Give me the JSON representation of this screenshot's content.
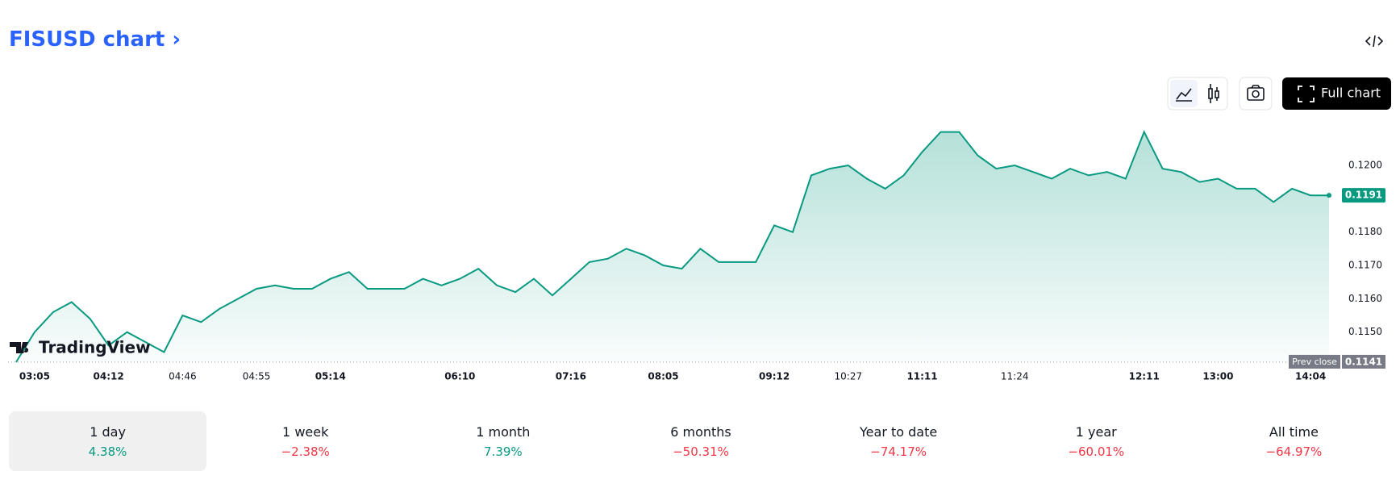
{
  "header": {
    "title": "FISUSD chart",
    "full_chart": "Full chart"
  },
  "chart_data": {
    "type": "line",
    "series": [
      {
        "name": "FISUSD",
        "color": "#089981",
        "values": [
          0.1141,
          0.115,
          0.1156,
          0.1159,
          0.1154,
          0.1146,
          0.115,
          0.1147,
          0.1144,
          0.1155,
          0.1153,
          0.1157,
          0.116,
          0.1163,
          0.1164,
          0.1163,
          0.1163,
          0.1166,
          0.1168,
          0.1163,
          0.1163,
          0.1163,
          0.1166,
          0.1164,
          0.1166,
          0.1169,
          0.1164,
          0.1162,
          0.1166,
          0.1161,
          0.1166,
          0.1171,
          0.1172,
          0.1175,
          0.1173,
          0.117,
          0.1169,
          0.1175,
          0.1171,
          0.1171,
          0.1171,
          0.1182,
          0.118,
          0.1197,
          0.1199,
          0.12,
          0.1196,
          0.1193,
          0.1197,
          0.1204,
          0.121,
          0.121,
          0.1203,
          0.1199,
          0.12,
          0.1198,
          0.1196,
          0.1199,
          0.1197,
          0.1198,
          0.1196,
          0.121,
          0.1199,
          0.1198,
          0.1195,
          0.1196,
          0.1193,
          0.1193,
          0.1189,
          0.1193,
          0.1191,
          0.1191
        ]
      }
    ],
    "last_value_label": "0.1191",
    "prev_close": {
      "name": "Prev close",
      "value": 0.1141,
      "label": "0.1141"
    },
    "xlim": [
      0,
      71
    ],
    "xticks": [
      {
        "value": 1,
        "label": "03:05",
        "major": true
      },
      {
        "value": 5,
        "label": "04:12",
        "major": true
      },
      {
        "value": 9,
        "label": "04:46",
        "major": false
      },
      {
        "value": 13,
        "label": "04:55",
        "major": false
      },
      {
        "value": 17,
        "label": "05:14",
        "major": true
      },
      {
        "value": 24,
        "label": "06:10",
        "major": true
      },
      {
        "value": 30,
        "label": "07:16",
        "major": true
      },
      {
        "value": 35,
        "label": "08:05",
        "major": true
      },
      {
        "value": 41,
        "label": "09:12",
        "major": true
      },
      {
        "value": 45,
        "label": "10:27",
        "major": false
      },
      {
        "value": 49,
        "label": "11:11",
        "major": true
      },
      {
        "value": 54,
        "label": "11:24",
        "major": false
      },
      {
        "value": 61,
        "label": "12:11",
        "major": true
      },
      {
        "value": 65,
        "label": "13:00",
        "major": true
      },
      {
        "value": 70,
        "label": "14:04",
        "major": true
      }
    ],
    "ylim": [
      0.11405,
      0.12145
    ],
    "yticks": [
      {
        "value": 0.115,
        "label": "0.1150"
      },
      {
        "value": 0.116,
        "label": "0.1160"
      },
      {
        "value": 0.117,
        "label": "0.1170"
      },
      {
        "value": 0.118,
        "label": "0.1180"
      },
      {
        "value": 0.12,
        "label": "0.1200"
      }
    ],
    "logo": "TradingView"
  },
  "periods": [
    {
      "label": "1 day",
      "change": "4.38%",
      "selected": true
    },
    {
      "label": "1 week",
      "change": "−2.38%",
      "selected": false
    },
    {
      "label": "1 month",
      "change": "7.39%",
      "selected": false
    },
    {
      "label": "6 months",
      "change": "−50.31%",
      "selected": false
    },
    {
      "label": "Year to date",
      "change": "−74.17%",
      "selected": false
    },
    {
      "label": "1 year",
      "change": "−60.01%",
      "selected": false
    },
    {
      "label": "All time",
      "change": "−64.97%",
      "selected": false
    }
  ]
}
